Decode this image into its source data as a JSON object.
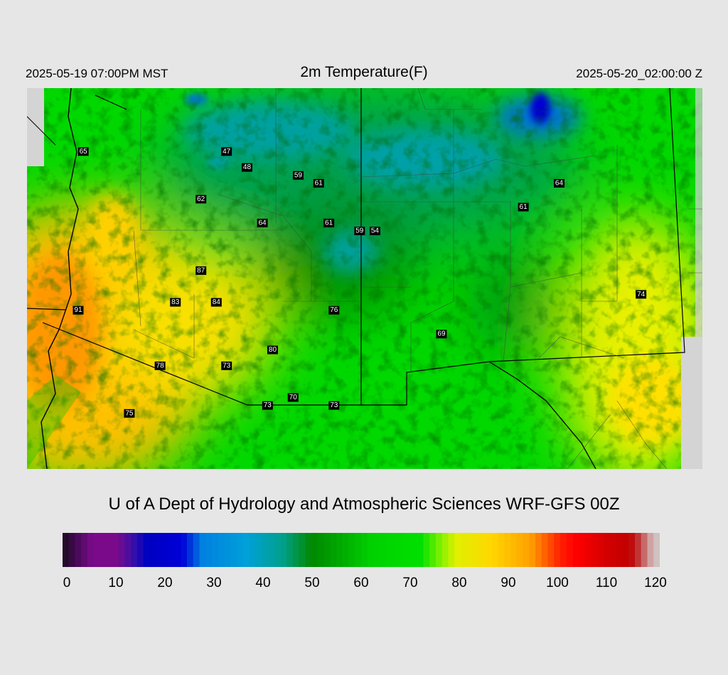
{
  "header": {
    "left_time": "2025-05-19 07:00PM MST",
    "title": "2m Temperature(F)",
    "right_time": "2025-05-20_02:00:00 Z"
  },
  "map": {
    "stations": [
      {
        "value": "65",
        "lon": -114.4,
        "lat": 33.8
      },
      {
        "value": "47",
        "lon": -111.6,
        "lat": 33.8
      },
      {
        "value": "48",
        "lon": -111.2,
        "lat": 33.6
      },
      {
        "value": "59",
        "lon": -110.2,
        "lat": 33.5
      },
      {
        "value": "61",
        "lon": -109.8,
        "lat": 33.4
      },
      {
        "value": "62",
        "lon": -112.1,
        "lat": 33.2
      },
      {
        "value": "64",
        "lon": -110.9,
        "lat": 32.9
      },
      {
        "value": "61",
        "lon": -109.6,
        "lat": 32.9
      },
      {
        "value": "59",
        "lon": -109.0,
        "lat": 32.8
      },
      {
        "value": "54",
        "lon": -108.7,
        "lat": 32.8
      },
      {
        "value": "64",
        "lon": -105.1,
        "lat": 33.4
      },
      {
        "value": "61",
        "lon": -105.8,
        "lat": 33.1
      },
      {
        "value": "87",
        "lon": -112.1,
        "lat": 32.3
      },
      {
        "value": "83",
        "lon": -112.6,
        "lat": 31.9
      },
      {
        "value": "84",
        "lon": -111.8,
        "lat": 31.9
      },
      {
        "value": "76",
        "lon": -109.5,
        "lat": 31.8
      },
      {
        "value": "74",
        "lon": -103.5,
        "lat": 32.0
      },
      {
        "value": "91",
        "lon": -114.5,
        "lat": 31.8
      },
      {
        "value": "69",
        "lon": -107.4,
        "lat": 31.5
      },
      {
        "value": "80",
        "lon": -110.7,
        "lat": 31.3
      },
      {
        "value": "78",
        "lon": -112.9,
        "lat": 31.1
      },
      {
        "value": "73",
        "lon": -111.6,
        "lat": 31.1
      },
      {
        "value": "70",
        "lon": -110.3,
        "lat": 30.7
      },
      {
        "value": "73",
        "lon": -110.8,
        "lat": 30.6
      },
      {
        "value": "73",
        "lon": -109.5,
        "lat": 30.6
      },
      {
        "value": "75",
        "lon": -113.5,
        "lat": 30.5
      }
    ]
  },
  "credit": "U of A Dept of Hydrology and Atmospheric Sciences WRF-GFS 00Z",
  "colorbar": {
    "min": 0,
    "max": 120,
    "ticks": [
      "0",
      "10",
      "20",
      "30",
      "40",
      "50",
      "60",
      "70",
      "80",
      "90",
      "100",
      "110",
      "120"
    ],
    "stops": [
      {
        "t": 0,
        "color": "#1a0a1e"
      },
      {
        "t": 3,
        "color": "#4a0a5a"
      },
      {
        "t": 6,
        "color": "#7a0a8a"
      },
      {
        "t": 11,
        "color": "#7a0a8a"
      },
      {
        "t": 14,
        "color": "#3a10a8"
      },
      {
        "t": 17,
        "color": "#0000c0"
      },
      {
        "t": 24,
        "color": "#0000d8"
      },
      {
        "t": 28,
        "color": "#0080e0"
      },
      {
        "t": 37,
        "color": "#00a0d8"
      },
      {
        "t": 44,
        "color": "#00a090"
      },
      {
        "t": 50,
        "color": "#008800"
      },
      {
        "t": 53,
        "color": "#009800"
      },
      {
        "t": 62,
        "color": "#00d000"
      },
      {
        "t": 72,
        "color": "#00e000"
      },
      {
        "t": 76,
        "color": "#80f000"
      },
      {
        "t": 79,
        "color": "#e0f000"
      },
      {
        "t": 86,
        "color": "#ffd800"
      },
      {
        "t": 94,
        "color": "#ffa000"
      },
      {
        "t": 100,
        "color": "#ff2000"
      },
      {
        "t": 103,
        "color": "#ff0000"
      },
      {
        "t": 110,
        "color": "#d00000"
      },
      {
        "t": 114,
        "color": "#c00000"
      },
      {
        "t": 116,
        "color": "#c04040"
      },
      {
        "t": 118,
        "color": "#d0a0a0"
      },
      {
        "t": 120,
        "color": "#d0d0d0"
      }
    ]
  }
}
